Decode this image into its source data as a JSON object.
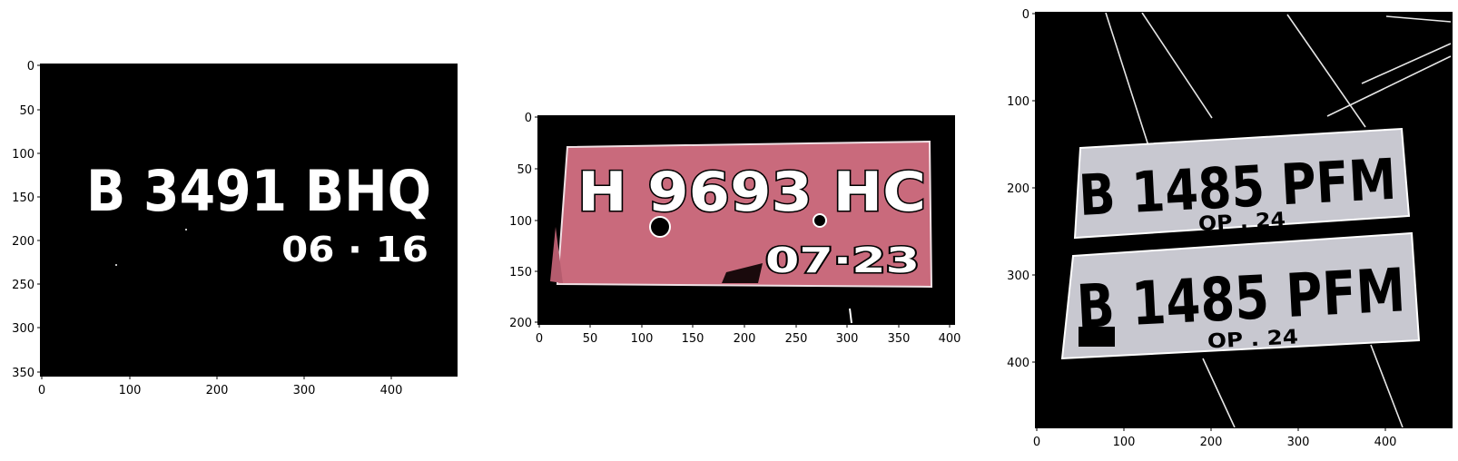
{
  "panels": [
    {
      "plate_main": "B 3491 BHQ",
      "plate_sub": "06 · 16",
      "xticks": [
        "0",
        "100",
        "200",
        "300",
        "400"
      ],
      "yticks": [
        "0",
        "50",
        "100",
        "150",
        "200",
        "250",
        "300",
        "350"
      ]
    },
    {
      "plate_main": "H 9693 HC",
      "plate_sub": "07·23",
      "xticks": [
        "0",
        "50",
        "100",
        "150",
        "200",
        "250",
        "300",
        "350",
        "400"
      ],
      "yticks": [
        "0",
        "50",
        "100",
        "150",
        "200"
      ]
    },
    {
      "plate_main_top": "B 1485 PFM",
      "plate_sub_top": "OP . 24",
      "plate_main_bottom": "B 1485 PFM",
      "plate_sub_bottom": "OP . 24",
      "xticks": [
        "0",
        "100",
        "200",
        "300",
        "400"
      ],
      "yticks": [
        "0",
        "100",
        "200",
        "300",
        "400"
      ]
    }
  ],
  "colors": {
    "background": "#000000",
    "plate_pink": "#c96a7c",
    "plate_gray": "#c8c8d0"
  }
}
